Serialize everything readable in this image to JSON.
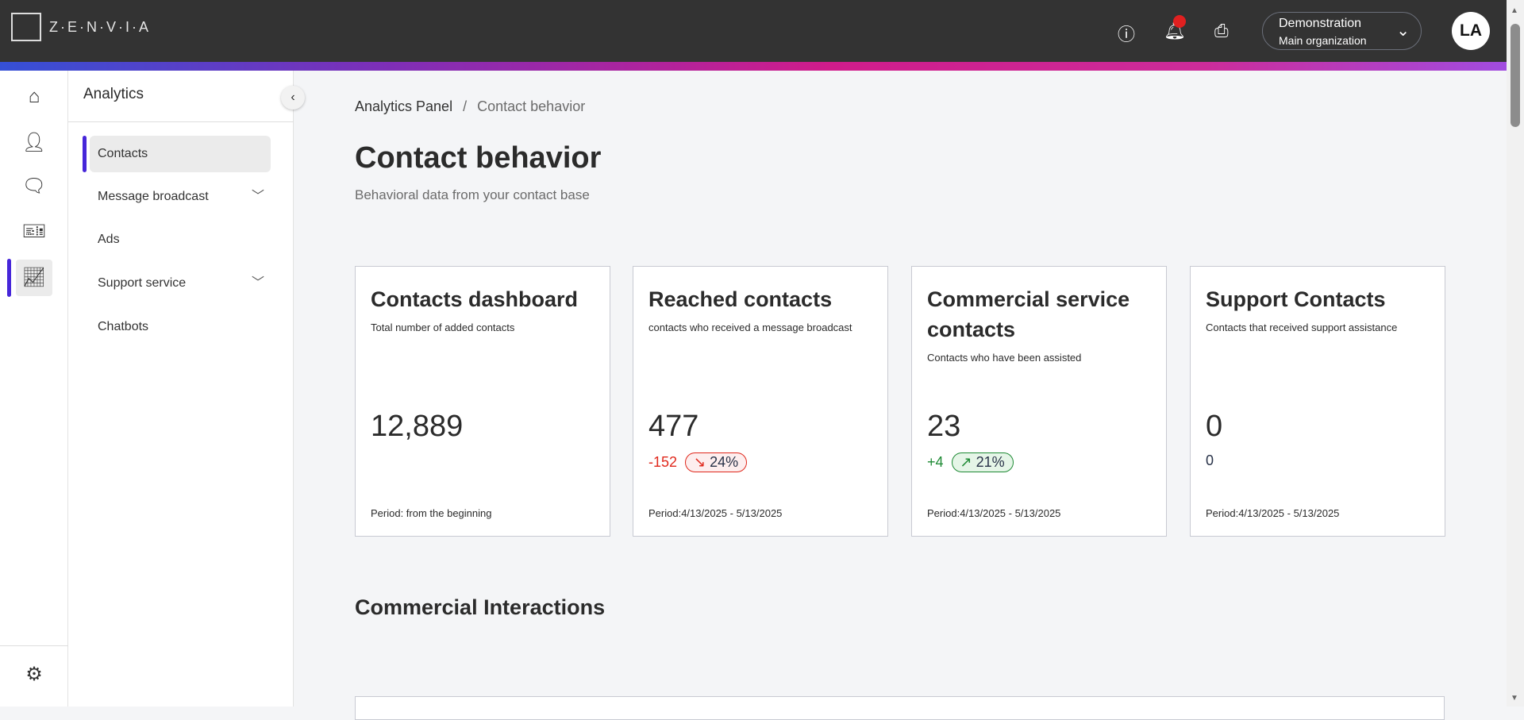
{
  "header": {
    "brand": "Z·E·N·V·I·A",
    "org_name": "Demonstration",
    "org_sub": "Main organization",
    "avatar": "LA",
    "icons": [
      "help-icon",
      "bell-icon",
      "printer-icon"
    ]
  },
  "rail": {
    "items": [
      "home-icon",
      "user-icon",
      "chat-icon",
      "ticket-icon",
      "chart-icon"
    ],
    "settings": "gear-icon"
  },
  "sidebar": {
    "title": "Analytics",
    "items": [
      {
        "label": "Contacts",
        "active": true
      },
      {
        "label": "Message broadcast",
        "expandable": true
      },
      {
        "label": "Ads"
      },
      {
        "label": "Support service",
        "expandable": true
      },
      {
        "label": "Chatbots"
      }
    ]
  },
  "breadcrumb": {
    "root": "Analytics Panel",
    "sep": "/",
    "current": "Contact behavior"
  },
  "page": {
    "title": "Contact behavior",
    "subtitle": "Behavioral data from your contact base",
    "section": "Commercial Interactions"
  },
  "cards": [
    {
      "title": "Contacts dashboard",
      "desc": "Total number of added contacts",
      "value": "12,889",
      "period": "Period: from the beginning"
    },
    {
      "title": "Reached contacts",
      "desc": "contacts who received a message broadcast",
      "value": "477",
      "delta": "-152",
      "pct": "24%",
      "arrow": "↘",
      "trend": "down",
      "period": "Period:4/13/2025 - 5/13/2025"
    },
    {
      "title": "Commercial service contacts",
      "desc": "Contacts who have been assisted",
      "value": "23",
      "delta": "+4",
      "pct": "21%",
      "arrow": "↗",
      "trend": "up",
      "period": "Period:4/13/2025 - 5/13/2025"
    },
    {
      "title": "Support Contacts",
      "desc": "Contacts that received support assistance",
      "value": "0",
      "delta": "0",
      "period": "Period:4/13/2025 - 5/13/2025"
    }
  ],
  "colors": {
    "accent": "#4626d9",
    "down": "#e0281c",
    "up": "#1e8a34",
    "topbar": "#333333"
  }
}
